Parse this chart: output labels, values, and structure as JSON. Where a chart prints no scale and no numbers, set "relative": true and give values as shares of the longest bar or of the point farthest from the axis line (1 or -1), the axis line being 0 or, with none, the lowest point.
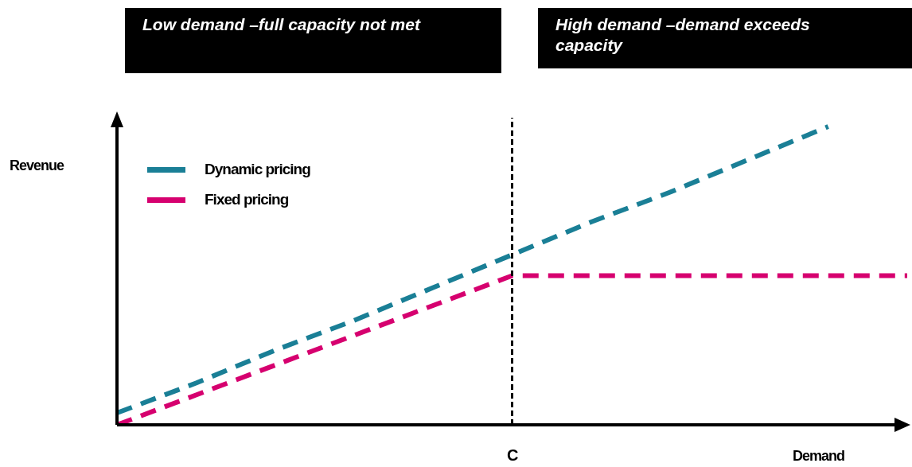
{
  "chart_data": {
    "type": "line",
    "relative": true,
    "xlabel": "Demand",
    "ylabel": "Revenue",
    "annotations": [
      "Low demand –full capacity not met",
      "High demand –demand exceeds capacity",
      "C"
    ],
    "categories": [
      null,
      null,
      null,
      null,
      null,
      null,
      null,
      null,
      null,
      null,
      null
    ],
    "series": [
      {
        "name": "Dynamic pricing",
        "color": "#1a7f96",
        "values": [
          0.04,
          0.14,
          0.25,
          0.35,
          0.46,
          0.57,
          0.68,
          0.78,
          0.89,
          1,
          null
        ]
      },
      {
        "name": "Fixed pricing",
        "color": "#d6006f",
        "values": [
          0,
          0.1,
          0.2,
          0.3,
          0.4,
          0.5,
          0.5,
          0.5,
          0.5,
          0.5,
          0.5
        ]
      }
    ],
    "legend": "top left",
    "line_style": "dashed",
    "marker": "none"
  }
}
